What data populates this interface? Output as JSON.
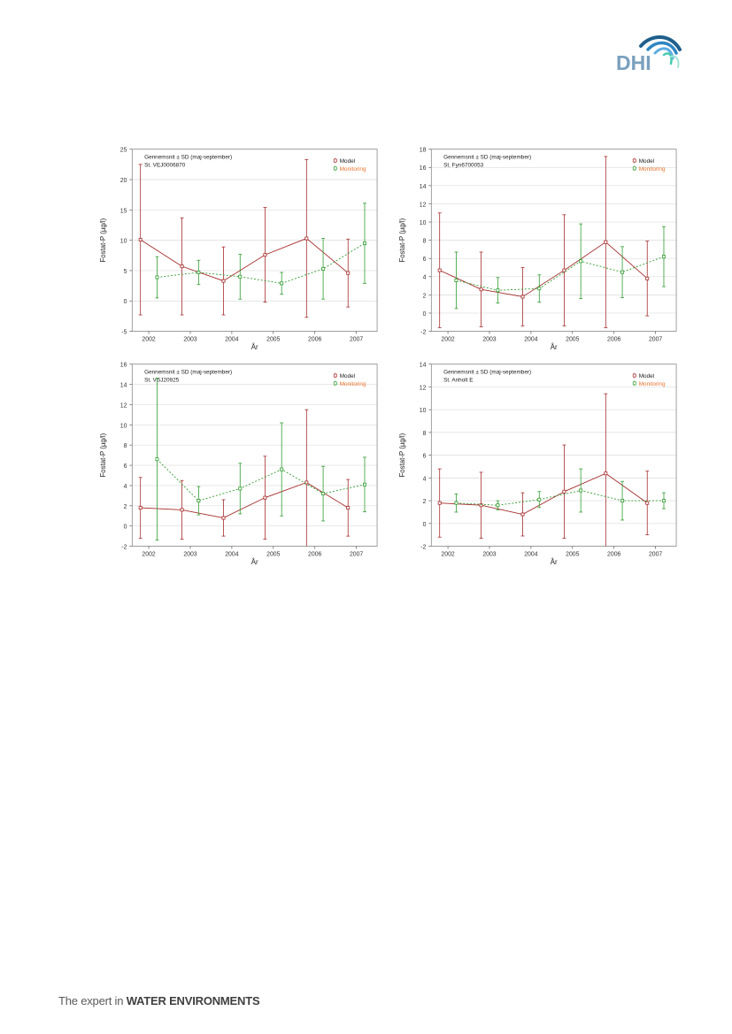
{
  "logo": {
    "text": "DHI",
    "color": "#7aa0bd",
    "swoosh_colors": [
      "#1f5f8b",
      "#2e86c1",
      "#5dade2",
      "#48c9b0",
      "#a3e4d7"
    ]
  },
  "footer": {
    "prefix": "The expert in",
    "emphasis": "WATER ENVIRONMENTS"
  },
  "colors": {
    "model": "#a52a2a",
    "monitoring": "#2f9a2f",
    "legend_monitoring_text": "#e8722c",
    "grid": "#dcdcdc",
    "axis": "#555555"
  },
  "chart_data": [
    {
      "type": "line",
      "title": "Gennemsnit ± SD (maj-september)",
      "subtitle": "St. VEJ0006870",
      "xlabel": "År",
      "ylabel": "Fostat-P (µg/l)",
      "categories": [
        "2002",
        "2003",
        "2004",
        "2005",
        "2006",
        "2007"
      ],
      "ylim": [
        -5,
        25
      ],
      "yticks": [
        -5,
        0,
        5,
        10,
        15,
        20,
        25
      ],
      "grid": true,
      "legend_position": "top-right",
      "series": [
        {
          "name": "Model",
          "x": [
            2001.8,
            2002.8,
            2003.8,
            2004.8,
            2005.8,
            2006.8
          ],
          "values": [
            10.1,
            5.7,
            3.3,
            7.6,
            10.3,
            4.6
          ],
          "sd": [
            12.4,
            8.0,
            5.6,
            7.8,
            13.0,
            5.6
          ]
        },
        {
          "name": "Monitoring",
          "x": [
            2002.2,
            2003.2,
            2004.2,
            2005.2,
            2006.2,
            2007.2
          ],
          "values": [
            3.9,
            4.7,
            4.0,
            2.9,
            5.3,
            9.5
          ],
          "sd": [
            3.4,
            2.0,
            3.7,
            1.8,
            5.0,
            6.6
          ]
        }
      ]
    },
    {
      "type": "line",
      "title": "Gennemsnit ± SD (maj-september)",
      "subtitle": "St. Fyn6700053",
      "xlabel": "År",
      "ylabel": "Fostat-P (µg/l)",
      "categories": [
        "2002",
        "2003",
        "2004",
        "2005",
        "2006",
        "2007"
      ],
      "ylim": [
        -2,
        18
      ],
      "yticks": [
        -2,
        0,
        2,
        4,
        6,
        8,
        10,
        12,
        14,
        16,
        18
      ],
      "grid": true,
      "legend_position": "top-right",
      "series": [
        {
          "name": "Model",
          "x": [
            2001.8,
            2002.8,
            2003.8,
            2004.8,
            2005.8,
            2006.8
          ],
          "values": [
            4.7,
            2.6,
            1.8,
            4.7,
            7.8,
            3.8
          ],
          "sd": [
            6.3,
            4.1,
            3.2,
            6.1,
            9.4,
            4.1
          ]
        },
        {
          "name": "Monitoring",
          "x": [
            2002.2,
            2003.2,
            2004.2,
            2005.2,
            2006.2,
            2007.2
          ],
          "values": [
            3.6,
            2.5,
            2.7,
            5.7,
            4.5,
            6.2
          ],
          "sd": [
            3.1,
            1.4,
            1.5,
            4.1,
            2.8,
            3.3
          ]
        }
      ]
    },
    {
      "type": "line",
      "title": "Gennemsnit ± SD (maj-september)",
      "subtitle": "St. VSJ20925",
      "xlabel": "År",
      "ylabel": "Fostat-P (µg/l)",
      "categories": [
        "2002",
        "2003",
        "2004",
        "2005",
        "2006",
        "2007"
      ],
      "ylim": [
        -2,
        16
      ],
      "yticks": [
        -2,
        0,
        2,
        4,
        6,
        8,
        10,
        12,
        14,
        16
      ],
      "grid": true,
      "legend_position": "top-right",
      "series": [
        {
          "name": "Model",
          "x": [
            2001.8,
            2002.8,
            2003.8,
            2004.8,
            2005.8,
            2006.8
          ],
          "values": [
            1.8,
            1.6,
            0.8,
            2.8,
            4.3,
            1.8
          ],
          "sd": [
            3.0,
            2.9,
            1.8,
            4.1,
            7.2,
            2.8
          ]
        },
        {
          "name": "Monitoring",
          "x": [
            2002.2,
            2003.2,
            2004.2,
            2005.2,
            2006.2,
            2007.2
          ],
          "values": [
            6.6,
            2.5,
            3.7,
            5.6,
            3.2,
            4.1
          ],
          "sd": [
            8.0,
            1.4,
            2.5,
            4.6,
            2.7,
            2.7
          ]
        }
      ]
    },
    {
      "type": "line",
      "title": "Gennemsnit ± SD (maj-september)",
      "subtitle": "St. Anholt E",
      "xlabel": "År",
      "ylabel": "Fostat-P (µg/l)",
      "categories": [
        "2002",
        "2003",
        "2004",
        "2005",
        "2006",
        "2007"
      ],
      "ylim": [
        -2,
        14
      ],
      "yticks": [
        -2,
        0,
        2,
        4,
        6,
        8,
        10,
        12,
        14
      ],
      "grid": true,
      "legend_position": "top-right",
      "series": [
        {
          "name": "Model",
          "x": [
            2001.8,
            2002.8,
            2003.8,
            2004.8,
            2005.8,
            2006.8
          ],
          "values": [
            1.8,
            1.6,
            0.8,
            2.8,
            4.4,
            1.8
          ],
          "sd": [
            3.0,
            2.9,
            1.9,
            4.1,
            7.0,
            2.8
          ]
        },
        {
          "name": "Monitoring",
          "x": [
            2002.2,
            2003.2,
            2004.2,
            2005.2,
            2006.2,
            2007.2
          ],
          "values": [
            1.8,
            1.6,
            2.1,
            2.9,
            2.0,
            2.0
          ],
          "sd": [
            0.8,
            0.4,
            0.7,
            1.9,
            1.7,
            0.7
          ]
        }
      ]
    }
  ]
}
